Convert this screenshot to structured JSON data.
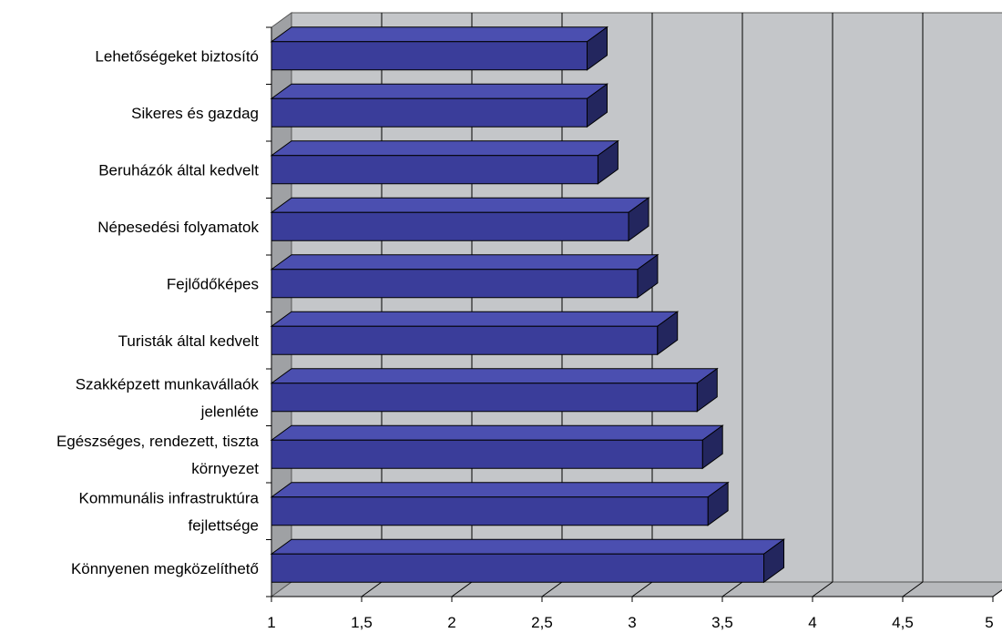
{
  "chart_data": {
    "type": "bar",
    "orientation": "horizontal",
    "three_d": true,
    "title": "",
    "xlabel": "",
    "ylabel": "",
    "xlim": [
      1,
      5
    ],
    "x_ticks": [
      "1",
      "1,5",
      "2",
      "2,5",
      "3",
      "3,5",
      "4",
      "4,5",
      "5"
    ],
    "grid": true,
    "legend": "none",
    "categories": [
      [
        "Lehetőségeket biztosító"
      ],
      [
        "Sikeres és gazdag"
      ],
      [
        "Beruházók által kedvelt"
      ],
      [
        "Népesedési folyamatok"
      ],
      [
        "Fejlődőképes"
      ],
      [
        "Turisták által kedvelt"
      ],
      [
        "Szakképzett munkavállaók",
        "jelenléte"
      ],
      [
        "Egészséges, rendezett, tiszta",
        "környezet"
      ],
      [
        "Kommunális infrastruktúra",
        "fejlettsége"
      ],
      [
        "Könnyenen megközelíthető"
      ]
    ],
    "values": [
      2.75,
      2.75,
      2.81,
      2.98,
      3.03,
      3.14,
      3.36,
      3.39,
      3.42,
      3.73
    ],
    "colors": {
      "bar_front": "#3a3d9a",
      "bar_top": "#4b4fb0",
      "bar_side": "#23265e",
      "plot_back": "#c4c6c9",
      "plot_floor": "#b7b9bc",
      "plot_left_wall": "#9fa1a4",
      "grid_line": "#000000"
    }
  }
}
